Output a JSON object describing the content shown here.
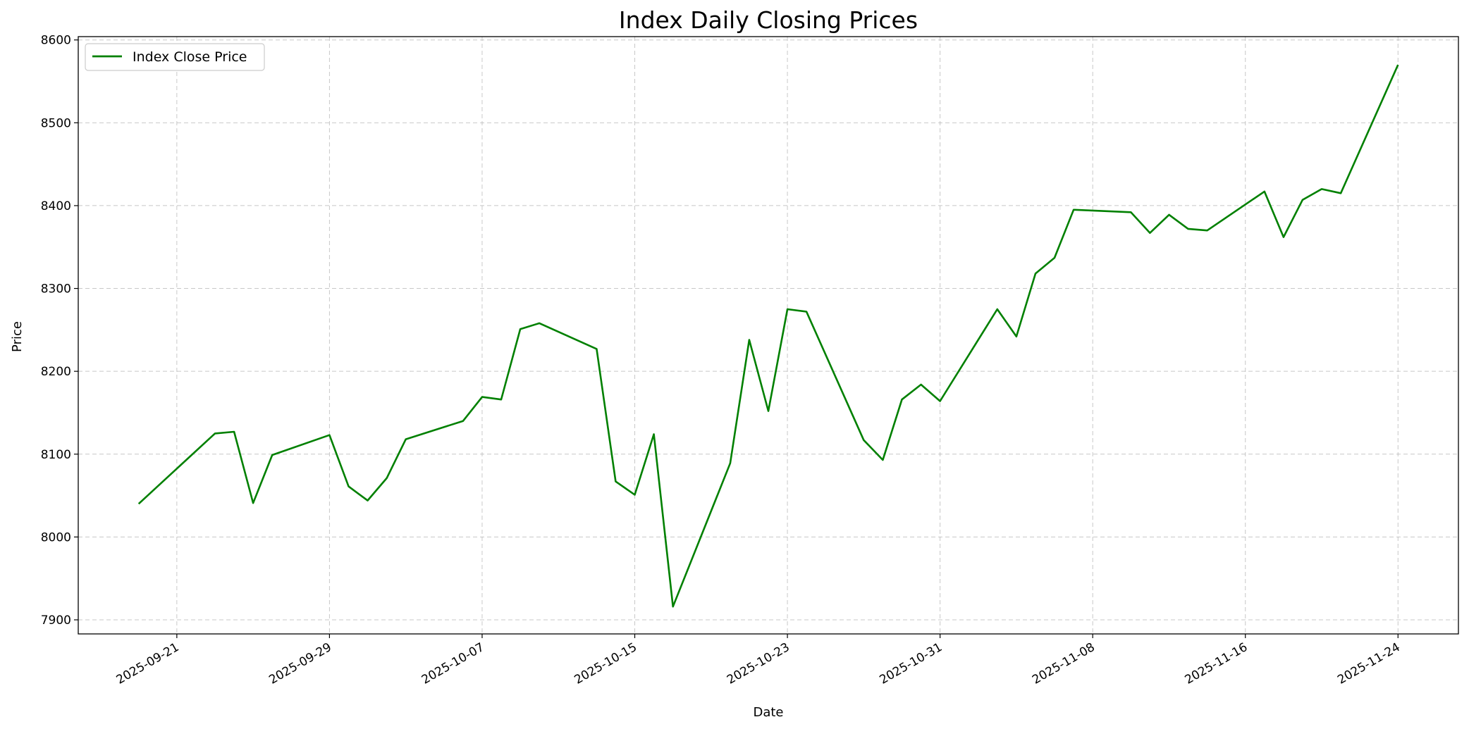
{
  "chart_data": {
    "type": "line",
    "title": "Index Daily Closing Prices",
    "xlabel": "Date",
    "ylabel": "Price",
    "xlim": [
      "2025-09-15T20:00",
      "2025-11-27T04:00"
    ],
    "ylim": [
      7883,
      8604
    ],
    "yticks": [
      7900,
      8000,
      8100,
      8200,
      8300,
      8400,
      8500,
      8600
    ],
    "xticks": [
      "2025-09-21",
      "2025-09-29",
      "2025-10-07",
      "2025-10-15",
      "2025-10-23",
      "2025-10-31",
      "2025-11-08",
      "2025-11-16",
      "2025-11-24"
    ],
    "grid": true,
    "legend_position": "top-left",
    "line_color": "#008000",
    "grid_color": "#b0b0b0",
    "series": [
      {
        "name": "Index Close Price",
        "x": [
          "2025-09-19",
          "2025-09-23",
          "2025-09-24",
          "2025-09-25",
          "2025-09-26",
          "2025-09-29",
          "2025-09-30",
          "2025-10-01",
          "2025-10-02",
          "2025-10-03",
          "2025-10-06",
          "2025-10-07",
          "2025-10-08",
          "2025-10-09",
          "2025-10-10",
          "2025-10-13",
          "2025-10-14",
          "2025-10-15",
          "2025-10-16",
          "2025-10-17",
          "2025-10-20",
          "2025-10-21",
          "2025-10-22",
          "2025-10-23",
          "2025-10-24",
          "2025-10-27",
          "2025-10-28",
          "2025-10-29",
          "2025-10-30",
          "2025-10-31",
          "2025-11-03",
          "2025-11-04",
          "2025-11-05",
          "2025-11-06",
          "2025-11-07",
          "2025-11-10",
          "2025-11-11",
          "2025-11-12",
          "2025-11-13",
          "2025-11-14",
          "2025-11-17",
          "2025-11-18",
          "2025-11-19",
          "2025-11-20",
          "2025-11-21",
          "2025-11-24"
        ],
        "values": [
          8040,
          8125,
          8127,
          8041,
          8099,
          8123,
          8061,
          8044,
          8071,
          8118,
          8140,
          8169,
          8166,
          8251,
          8258,
          8227,
          8067,
          8051,
          8124,
          7916,
          8089,
          8238,
          8152,
          8275,
          8272,
          8117,
          8093,
          8166,
          8184,
          8164,
          8275,
          8242,
          8318,
          8337,
          8395,
          8392,
          8367,
          8389,
          8372,
          8370,
          8417,
          8362,
          8407,
          8420,
          8415,
          8570
        ]
      }
    ]
  }
}
